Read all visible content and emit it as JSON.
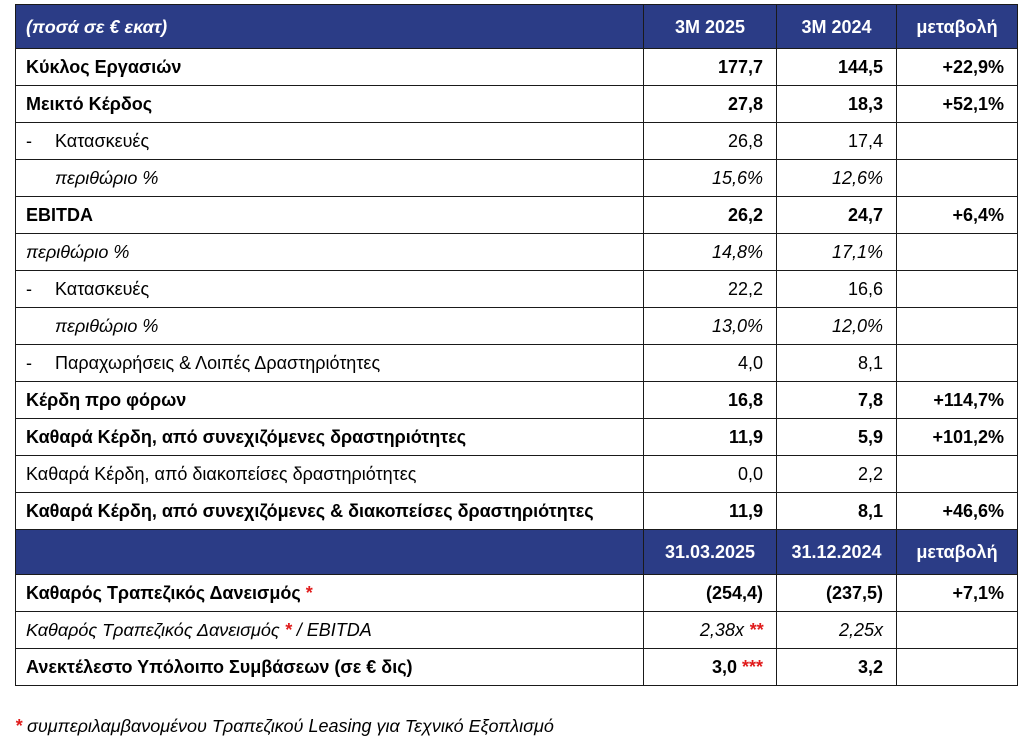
{
  "header": {
    "label": "(ποσά σε € εκατ)",
    "col1": "3M 2025",
    "col2": "3M 2024",
    "col3": "μεταβολή"
  },
  "rows": [
    {
      "label": "Κύκλος Εργασιών",
      "v1": "177,7",
      "v2": "144,5",
      "chg": "+22,9%"
    },
    {
      "label": "Μεικτό Κέρδος",
      "v1": "27,8",
      "v2": "18,3",
      "chg": "+52,1%"
    },
    {
      "dash": "-",
      "label": "Κατασκευές",
      "v1": "26,8",
      "v2": "17,4",
      "chg": ""
    },
    {
      "label": "περιθώριο %",
      "v1": "15,6%",
      "v2": "12,6%",
      "chg": ""
    },
    {
      "label": "EBITDA",
      "v1": "26,2",
      "v2": "24,7",
      "chg": "+6,4%"
    },
    {
      "label": "περιθώριο %",
      "v1": "14,8%",
      "v2": "17,1%",
      "chg": ""
    },
    {
      "dash": "-",
      "label": "Κατασκευές",
      "v1": "22,2",
      "v2": "16,6",
      "chg": ""
    },
    {
      "label": "περιθώριο %",
      "v1": "13,0%",
      "v2": "12,0%",
      "chg": ""
    },
    {
      "dash": "-",
      "label": "Παραχωρήσεις & Λοιπές Δραστηριότητες",
      "v1": "4,0",
      "v2": "8,1",
      "chg": ""
    },
    {
      "label": "Κέρδη προ φόρων",
      "v1": "16,8",
      "v2": "7,8",
      "chg": "+114,7%"
    },
    {
      "label": "Καθαρά Κέρδη, από συνεχιζόμενες δραστηριότητες",
      "v1": "11,9",
      "v2": "5,9",
      "chg": "+101,2%"
    },
    {
      "label": "Καθαρά Κέρδη, από διακοπείσες δραστηριότητες",
      "v1": "0,0",
      "v2": "2,2",
      "chg": ""
    },
    {
      "label": "Καθαρά Κέρδη, από συνεχιζόμενες & διακοπείσες δραστηριότητες",
      "v1": "11,9",
      "v2": "8,1",
      "chg": "+46,6%"
    }
  ],
  "header2": {
    "label": "",
    "col1": "31.03.2025",
    "col2": "31.12.2024",
    "col3": "μεταβολή"
  },
  "rows2": [
    {
      "label": "Καθαρός Τραπεζικός Δανεισμός",
      "mark": "*",
      "v1": "(254,4)",
      "v1mark": "",
      "v2": "(237,5)",
      "chg": "+7,1%"
    },
    {
      "label": "Καθαρός Τραπεζικός Δανεισμός",
      "mark": "*",
      "suffix": "/ EBITDA",
      "v1": "2,38x",
      "v1mark": "**",
      "v2": "2,25x",
      "chg": ""
    },
    {
      "label": "Ανεκτέλεστο Υπόλοιπο Συμβάσεων (σε € δις)",
      "mark": "",
      "v1": "3,0",
      "v1mark": "***",
      "v2": "3,2",
      "chg": ""
    }
  ],
  "footnote": {
    "mark": "*",
    "text": "συμπεριλαμβανομένου Τραπεζικού Leasing για Τεχνικό Εξοπλισμό"
  },
  "colors": {
    "header_bg": "#2b3c86",
    "header_text": "#ffffff",
    "asterisk": "#e01b1b"
  }
}
